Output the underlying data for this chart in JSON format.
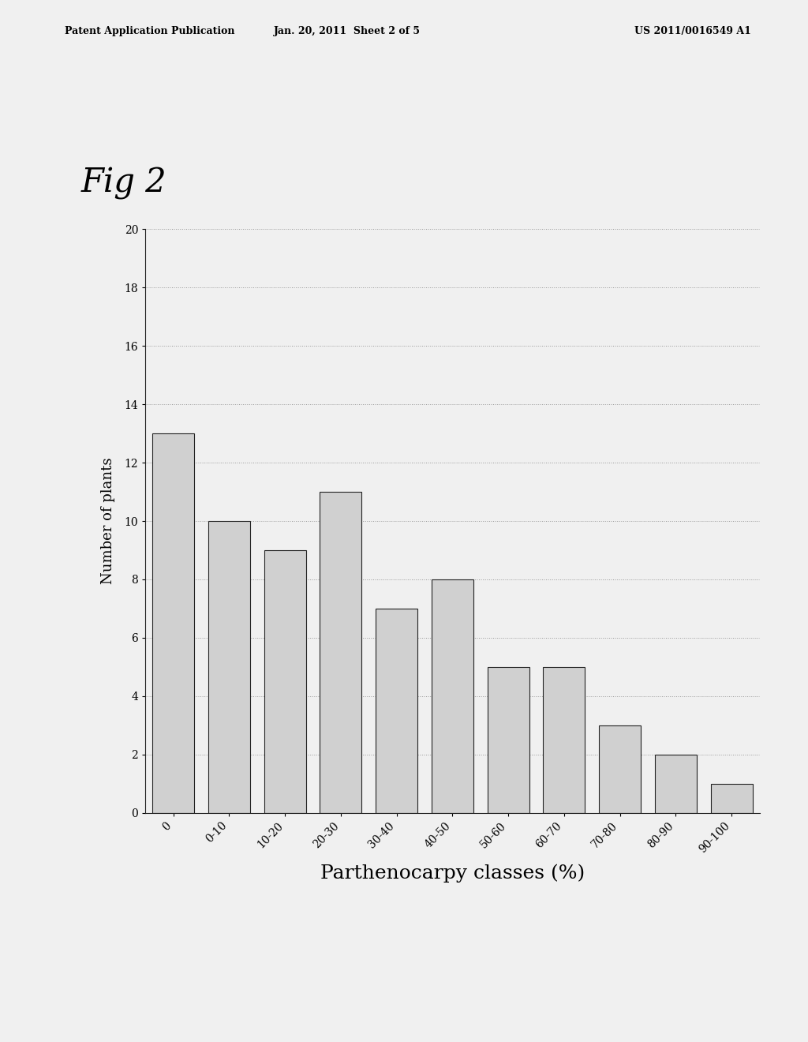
{
  "categories": [
    "0",
    "0-10",
    "10-20",
    "20-30",
    "30-40",
    "40-50",
    "50-60",
    "60-70",
    "70-80",
    "80-90",
    "90-100"
  ],
  "values": [
    13,
    10,
    9,
    11,
    7,
    8,
    5,
    5,
    3,
    2,
    1
  ],
  "bar_color": "#d0d0d0",
  "bar_edge_color": "#222222",
  "bar_edge_width": 0.8,
  "xlabel": "Parthenocarpy classes (%)",
  "ylabel": "Number of plants",
  "ylim": [
    0,
    20
  ],
  "yticks": [
    0,
    2,
    4,
    6,
    8,
    10,
    12,
    14,
    16,
    18,
    20
  ],
  "grid_color": "#999999",
  "fig_title": "Fig 2",
  "header_left": "Patent Application Publication",
  "header_mid": "Jan. 20, 2011  Sheet 2 of 5",
  "header_right": "US 2011/0016549 A1",
  "bg_color": "#f0f0f0",
  "xlabel_fontsize": 18,
  "ylabel_fontsize": 13,
  "tick_fontsize": 10,
  "fig_title_fontsize": 30,
  "header_fontsize": 9
}
